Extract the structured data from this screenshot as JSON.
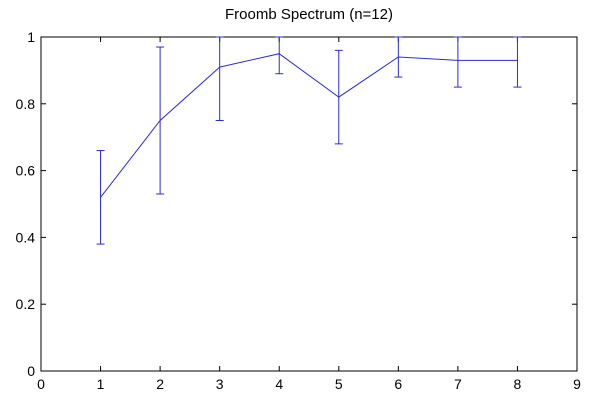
{
  "chart_data": {
    "type": "line",
    "title": "Froomb Spectrum (n=12)",
    "xlabel": "",
    "ylabel": "",
    "xlim": [
      0,
      9
    ],
    "ylim": [
      0,
      1
    ],
    "xticks": [
      "0",
      "1",
      "2",
      "3",
      "4",
      "5",
      "6",
      "7",
      "8",
      "9"
    ],
    "yticks": [
      "0",
      "0.2",
      "0.4",
      "0.6",
      "0.8",
      "1"
    ],
    "grid": false,
    "series": [
      {
        "x": [
          1,
          2,
          3,
          4,
          5,
          6,
          7,
          8
        ],
        "y": [
          0.52,
          0.75,
          0.91,
          0.95,
          0.82,
          0.94,
          0.93,
          0.93
        ],
        "error_low": [
          0.38,
          0.53,
          0.75,
          0.89,
          0.68,
          0.88,
          0.85,
          0.85
        ],
        "error_high": [
          0.66,
          0.97,
          1.0,
          1.0,
          0.96,
          1.0,
          1.0,
          1.0
        ],
        "color": "#2b2bd6"
      }
    ]
  }
}
